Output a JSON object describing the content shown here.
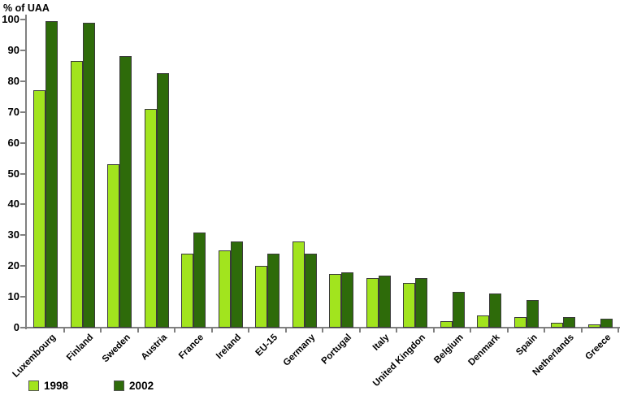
{
  "chart_data": {
    "type": "bar",
    "title": "",
    "y_axis_title": "% of UAA",
    "xlabel": "",
    "ylabel": "% of UAA",
    "ylim": [
      0,
      100
    ],
    "y_ticks": [
      0,
      10,
      20,
      30,
      40,
      50,
      60,
      70,
      80,
      90,
      100
    ],
    "grid": false,
    "legend_position": "bottom-left",
    "categories": [
      "Luxembourg",
      "Finland",
      "Sweden",
      "Austria",
      "France",
      "Ireland",
      "EU-15",
      "Germany",
      "Portugal",
      "Italy",
      "United Kingdon",
      "Belgium",
      "Denmark",
      "Spain",
      "Netherlands",
      "Greece"
    ],
    "series": [
      {
        "name": "1998",
        "color": "#A2E41E",
        "values": [
          77,
          86.5,
          53,
          71,
          24,
          25,
          20,
          28,
          17.5,
          16,
          14.5,
          2,
          4,
          3.5,
          1.5,
          1
        ]
      },
      {
        "name": "2002",
        "color": "#2E6B0A",
        "values": [
          99.5,
          99,
          88,
          82.5,
          31,
          28,
          24,
          24,
          18,
          17,
          16,
          11.5,
          11,
          9,
          3.5,
          3
        ]
      }
    ],
    "colors": {
      "bar_border": "#3A3A3A",
      "axis": "#808080",
      "text": "#000000",
      "background": "#FFFFFF"
    }
  }
}
